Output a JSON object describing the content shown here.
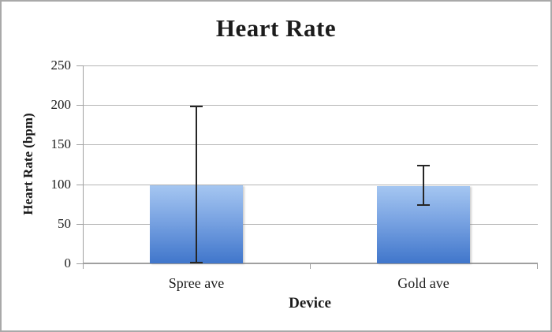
{
  "chart_data": {
    "type": "bar",
    "title": "Heart Rate",
    "xlabel": "Device",
    "ylabel": "Heart Rate (bpm)",
    "categories": [
      "Spree ave",
      "Gold ave"
    ],
    "values": [
      99,
      98
    ],
    "error_bars": [
      {
        "low": 1,
        "high": 198
      },
      {
        "low": 74,
        "high": 124
      }
    ],
    "ylim": [
      0,
      250
    ],
    "yticks": [
      0,
      50,
      100,
      150,
      200,
      250
    ],
    "grid": true,
    "legend": "none",
    "colors": {
      "bar_gradient_top": "#a5c6f1",
      "bar_gradient_bottom": "#4076cb",
      "gridline": "#b5b5b5",
      "axis": "#a0a0a0",
      "error_bar": "#262626",
      "text": "#1c1c1c",
      "frame_border": "#a9a9a9",
      "background": "#ffffff"
    }
  }
}
